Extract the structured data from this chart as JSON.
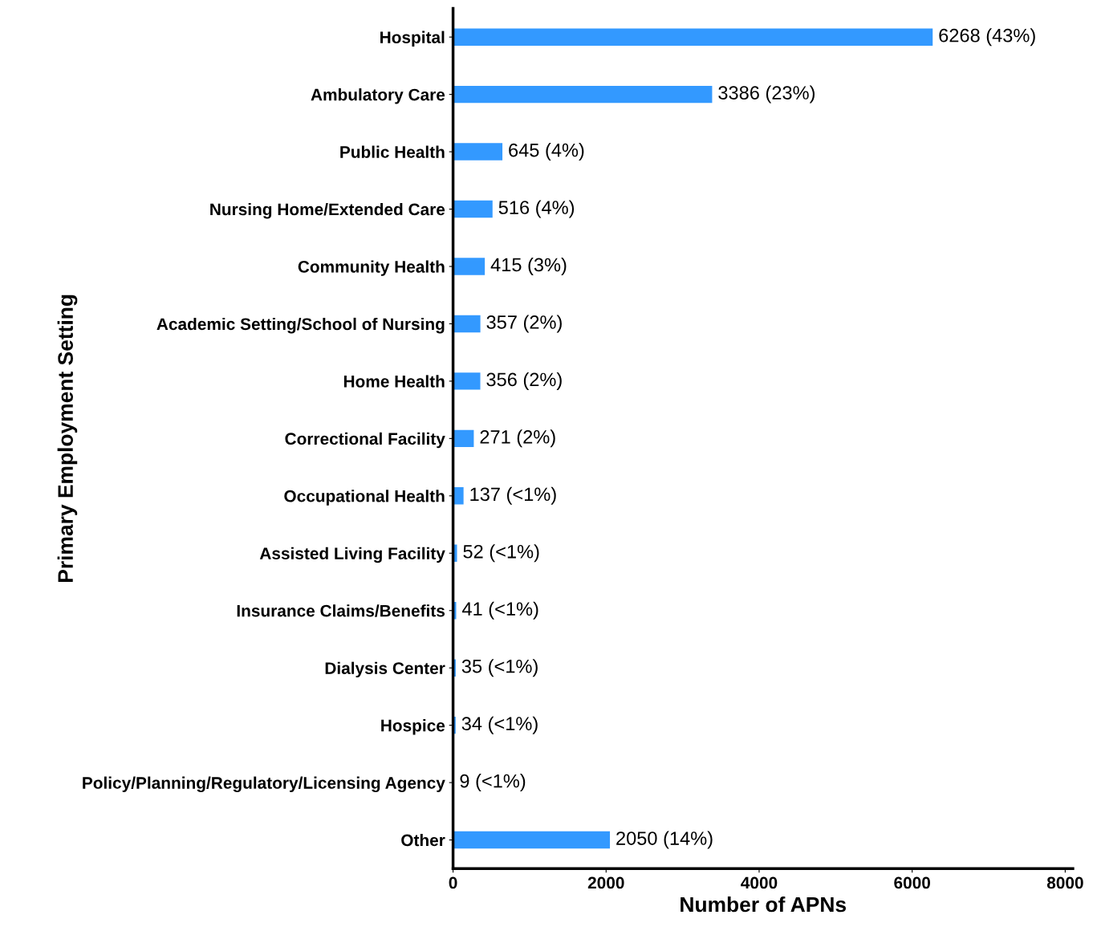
{
  "chart_data": {
    "type": "bar",
    "orientation": "horizontal",
    "xlabel": "Number of APNs",
    "ylabel": "Primary Employment Setting",
    "categories": [
      "Hospital",
      "Ambulatory Care",
      "Public Health",
      "Nursing Home/Extended Care",
      "Community Health",
      "Academic Setting/School of Nursing",
      "Home Health",
      "Correctional Facility",
      "Occupational Health",
      "Assisted Living Facility",
      "Insurance Claims/Benefits",
      "Dialysis Center",
      "Hospice",
      "Policy/Planning/Regulatory/Licensing Agency",
      "Other"
    ],
    "values": [
      6268,
      3386,
      645,
      516,
      415,
      357,
      356,
      271,
      137,
      52,
      41,
      35,
      34,
      9,
      2050
    ],
    "value_labels": [
      "6268 (43%)",
      "3386 (23%)",
      "645 (4%)",
      "516 (4%)",
      "415 (3%)",
      "357 (2%)",
      "356 (2%)",
      "271 (2%)",
      "137 (<1%)",
      "52 (<1%)",
      "41 (<1%)",
      "35 (<1%)",
      "34 (<1%)",
      "9 (<1%)",
      "2050 (14%)"
    ],
    "color": "#3399ff",
    "xlim": [
      0,
      8100
    ],
    "xticks": [
      0,
      2000,
      4000,
      6000,
      8000
    ],
    "grid": false,
    "legend": false
  }
}
